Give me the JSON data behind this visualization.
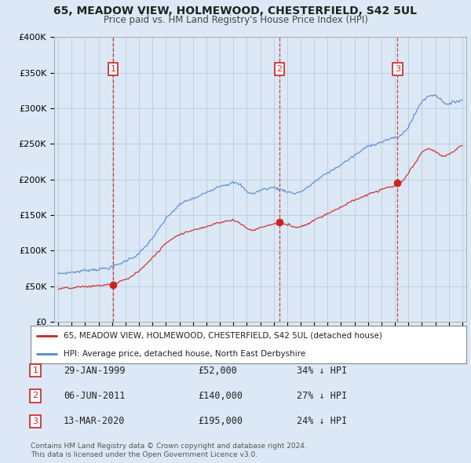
{
  "title": "65, MEADOW VIEW, HOLMEWOOD, CHESTERFIELD, S42 5UL",
  "subtitle": "Price paid vs. HM Land Registry's House Price Index (HPI)",
  "hpi_label": "HPI: Average price, detached house, North East Derbyshire",
  "property_label": "65, MEADOW VIEW, HOLMEWOOD, CHESTERFIELD, S42 5UL (detached house)",
  "footer1": "Contains HM Land Registry data © Crown copyright and database right 2024.",
  "footer2": "This data is licensed under the Open Government Licence v3.0.",
  "background_color": "#dce8f5",
  "plot_bg_color": "#dce8f5",
  "legend_bg_color": "#ffffff",
  "hpi_color": "#5588cc",
  "property_color": "#cc2222",
  "vline_color": "#cc2222",
  "purchases": [
    {
      "label": "1",
      "date": 1999.08,
      "price": 52000,
      "text_date": "29-JAN-1999",
      "text_price": "£52,000",
      "text_pct": "34% ↓ HPI"
    },
    {
      "label": "2",
      "date": 2011.43,
      "price": 140000,
      "text_date": "06-JUN-2011",
      "text_price": "£140,000",
      "text_pct": "27% ↓ HPI"
    },
    {
      "label": "3",
      "date": 2020.19,
      "price": 195000,
      "text_date": "13-MAR-2020",
      "text_price": "£195,000",
      "text_pct": "24% ↓ HPI"
    }
  ],
  "ylim": [
    0,
    400000
  ],
  "yticks": [
    0,
    50000,
    100000,
    150000,
    200000,
    250000,
    300000,
    350000,
    400000
  ],
  "ytick_labels": [
    "£0",
    "£50K",
    "£100K",
    "£150K",
    "£200K",
    "£250K",
    "£300K",
    "£350K",
    "£400K"
  ],
  "xlim_start": 1994.7,
  "xlim_end": 2025.3,
  "hpi_anchors": [
    [
      1995.0,
      67000
    ],
    [
      1995.5,
      68000
    ],
    [
      1996.0,
      69500
    ],
    [
      1996.5,
      70500
    ],
    [
      1997.0,
      72000
    ],
    [
      1997.5,
      73500
    ],
    [
      1998.0,
      75000
    ],
    [
      1998.5,
      76000
    ],
    [
      1999.0,
      78000
    ],
    [
      1999.5,
      81000
    ],
    [
      2000.0,
      86000
    ],
    [
      2000.5,
      91000
    ],
    [
      2001.0,
      97000
    ],
    [
      2001.5,
      106000
    ],
    [
      2002.0,
      118000
    ],
    [
      2002.5,
      130000
    ],
    [
      2003.0,
      143000
    ],
    [
      2003.5,
      153000
    ],
    [
      2004.0,
      162000
    ],
    [
      2004.5,
      167000
    ],
    [
      2005.0,
      170000
    ],
    [
      2005.5,
      173000
    ],
    [
      2006.0,
      178000
    ],
    [
      2006.5,
      184000
    ],
    [
      2007.0,
      190000
    ],
    [
      2007.5,
      193000
    ],
    [
      2008.0,
      196000
    ],
    [
      2008.5,
      192000
    ],
    [
      2009.0,
      182000
    ],
    [
      2009.5,
      179000
    ],
    [
      2010.0,
      184000
    ],
    [
      2010.5,
      186000
    ],
    [
      2011.0,
      188000
    ],
    [
      2011.5,
      185000
    ],
    [
      2012.0,
      183000
    ],
    [
      2012.5,
      180000
    ],
    [
      2013.0,
      183000
    ],
    [
      2013.5,
      188000
    ],
    [
      2014.0,
      196000
    ],
    [
      2014.5,
      202000
    ],
    [
      2015.0,
      208000
    ],
    [
      2015.5,
      213000
    ],
    [
      2016.0,
      220000
    ],
    [
      2016.5,
      226000
    ],
    [
      2017.0,
      232000
    ],
    [
      2017.5,
      238000
    ],
    [
      2018.0,
      244000
    ],
    [
      2018.5,
      248000
    ],
    [
      2019.0,
      252000
    ],
    [
      2019.5,
      255000
    ],
    [
      2020.0,
      256000
    ],
    [
      2020.5,
      260000
    ],
    [
      2021.0,
      272000
    ],
    [
      2021.5,
      290000
    ],
    [
      2022.0,
      308000
    ],
    [
      2022.5,
      315000
    ],
    [
      2023.0,
      318000
    ],
    [
      2023.5,
      310000
    ],
    [
      2024.0,
      305000
    ],
    [
      2024.5,
      308000
    ],
    [
      2025.0,
      312000
    ]
  ],
  "prop_anchors": [
    [
      1995.0,
      46000
    ],
    [
      1995.5,
      46500
    ],
    [
      1996.0,
      46000
    ],
    [
      1996.5,
      47000
    ],
    [
      1997.0,
      47500
    ],
    [
      1997.5,
      48000
    ],
    [
      1998.0,
      49000
    ],
    [
      1998.5,
      50000
    ],
    [
      1999.0,
      50500
    ],
    [
      1999.08,
      52000
    ],
    [
      1999.5,
      53000
    ],
    [
      2000.0,
      57000
    ],
    [
      2000.5,
      62000
    ],
    [
      2001.0,
      69000
    ],
    [
      2001.5,
      78000
    ],
    [
      2002.0,
      88000
    ],
    [
      2002.5,
      98000
    ],
    [
      2003.0,
      108000
    ],
    [
      2003.5,
      116000
    ],
    [
      2004.0,
      122000
    ],
    [
      2004.5,
      126000
    ],
    [
      2005.0,
      128000
    ],
    [
      2005.5,
      131000
    ],
    [
      2006.0,
      134000
    ],
    [
      2006.5,
      138000
    ],
    [
      2007.0,
      141000
    ],
    [
      2007.5,
      143000
    ],
    [
      2008.0,
      144000
    ],
    [
      2008.5,
      140000
    ],
    [
      2009.0,
      133000
    ],
    [
      2009.5,
      130000
    ],
    [
      2010.0,
      134000
    ],
    [
      2010.5,
      137000
    ],
    [
      2011.0,
      139000
    ],
    [
      2011.43,
      140000
    ],
    [
      2011.5,
      140000
    ],
    [
      2012.0,
      138000
    ],
    [
      2012.5,
      135000
    ],
    [
      2013.0,
      136000
    ],
    [
      2013.5,
      140000
    ],
    [
      2014.0,
      146000
    ],
    [
      2014.5,
      151000
    ],
    [
      2015.0,
      156000
    ],
    [
      2015.5,
      161000
    ],
    [
      2016.0,
      166000
    ],
    [
      2016.5,
      171000
    ],
    [
      2017.0,
      175000
    ],
    [
      2017.5,
      179000
    ],
    [
      2018.0,
      183000
    ],
    [
      2018.5,
      186000
    ],
    [
      2019.0,
      189000
    ],
    [
      2019.5,
      192000
    ],
    [
      2020.0,
      193000
    ],
    [
      2020.19,
      195000
    ],
    [
      2020.5,
      198000
    ],
    [
      2021.0,
      210000
    ],
    [
      2021.5,
      224000
    ],
    [
      2022.0,
      238000
    ],
    [
      2022.5,
      244000
    ],
    [
      2023.0,
      240000
    ],
    [
      2023.5,
      232000
    ],
    [
      2024.0,
      235000
    ],
    [
      2024.5,
      242000
    ],
    [
      2025.0,
      248000
    ]
  ]
}
